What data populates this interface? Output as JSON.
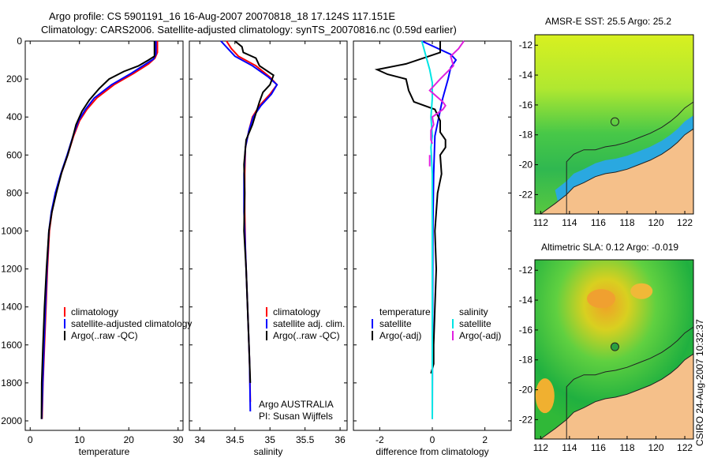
{
  "header": {
    "line1": "Argo profile: CS 5901191_16 16-Aug-2007 20070818_18 17.124S 117.151E",
    "line2": "Climatology: CARS2006. Satellite-adjusted climatology: synTS_20070816.nc (0.59d earlier)"
  },
  "credit": "CSIRO 24-Aug-2007 10:32:37",
  "colors": {
    "climatology": "#ff0000",
    "satellite": "#0000ff",
    "argo": "#000000",
    "salinity_sat": "#00e5e5",
    "salinity_argo": "#e020e0",
    "land": "#f5c08a"
  },
  "chart_data": [
    {
      "type": "line",
      "xlabel": "temperature",
      "xlim": [
        -1,
        31
      ],
      "xticks": [
        0,
        10,
        20,
        30
      ],
      "ylim": [
        2050,
        0
      ],
      "yticks": [
        0,
        200,
        400,
        600,
        800,
        1000,
        1200,
        1400,
        1600,
        1800,
        2000
      ],
      "legend": [
        "climatology",
        "satellite-adjusted climatology",
        "Argo(..raw -QC)"
      ],
      "series": [
        {
          "name": "climatology",
          "color": "red",
          "points": [
            [
              25.8,
              0
            ],
            [
              25.8,
              60
            ],
            [
              25.3,
              90
            ],
            [
              24,
              120
            ],
            [
              21,
              170
            ],
            [
              17,
              230
            ],
            [
              13.5,
              300
            ],
            [
              11.5,
              360
            ],
            [
              10,
              420
            ],
            [
              8.8,
              500
            ],
            [
              7.6,
              600
            ],
            [
              6.3,
              700
            ],
            [
              5.2,
              800
            ],
            [
              4.4,
              900
            ],
            [
              3.9,
              1000
            ],
            [
              3.5,
              1200
            ],
            [
              3.2,
              1400
            ],
            [
              2.9,
              1600
            ],
            [
              2.6,
              1800
            ],
            [
              2.4,
              1990
            ]
          ]
        },
        {
          "name": "satellite-adjusted climatology",
          "color": "blue",
          "points": [
            [
              25.5,
              0
            ],
            [
              25.5,
              70
            ],
            [
              25,
              95
            ],
            [
              23.5,
              120
            ],
            [
              20.5,
              170
            ],
            [
              16.5,
              230
            ],
            [
              13,
              300
            ],
            [
              11.2,
              360
            ],
            [
              9.8,
              420
            ],
            [
              8.7,
              500
            ],
            [
              7.5,
              600
            ],
            [
              6.2,
              700
            ],
            [
              5.1,
              800
            ],
            [
              4.3,
              900
            ],
            [
              3.8,
              1000
            ],
            [
              3.4,
              1200
            ],
            [
              3.1,
              1400
            ],
            [
              2.8,
              1600
            ],
            [
              2.55,
              1800
            ],
            [
              2.35,
              1990
            ]
          ]
        },
        {
          "name": "Argo(..raw -QC)",
          "color": "black",
          "points": [
            [
              25.2,
              0
            ],
            [
              25.2,
              80
            ],
            [
              24,
              100
            ],
            [
              22,
              130
            ],
            [
              19,
              160
            ],
            [
              16,
              200
            ],
            [
              14,
              250
            ],
            [
              12,
              310
            ],
            [
              10.5,
              370
            ],
            [
              9.3,
              440
            ],
            [
              8.5,
              520
            ],
            [
              7.6,
              600
            ],
            [
              6.4,
              690
            ],
            [
              5.3,
              800
            ],
            [
              4.4,
              900
            ],
            [
              3.8,
              1000
            ],
            [
              3.3,
              1200
            ],
            [
              2.9,
              1400
            ],
            [
              2.6,
              1600
            ],
            [
              2.35,
              1800
            ],
            [
              2.3,
              1990
            ]
          ]
        }
      ]
    },
    {
      "type": "line",
      "xlabel": "salinity",
      "xlim": [
        33.85,
        36.1
      ],
      "xticks": [
        34,
        34.5,
        35,
        35.5,
        36
      ],
      "ylim": [
        2050,
        0
      ],
      "yticks": [
        0,
        200,
        400,
        600,
        800,
        1000,
        1200,
        1400,
        1600,
        1800,
        2000
      ],
      "legend": [
        "climatology",
        "satellite adj. clim.",
        "Argo(..raw -QC)"
      ],
      "annotation": [
        "Argo AUSTRALIA",
        "PI: Susan Wijffels"
      ],
      "series": [
        {
          "name": "climatology",
          "color": "red",
          "points": [
            [
              34.38,
              0
            ],
            [
              34.45,
              40
            ],
            [
              34.55,
              80
            ],
            [
              34.8,
              130
            ],
            [
              35,
              190
            ],
            [
              35.1,
              230
            ],
            [
              35.0,
              280
            ],
            [
              34.85,
              340
            ],
            [
              34.75,
              400
            ],
            [
              34.7,
              470
            ],
            [
              34.65,
              560
            ],
            [
              34.64,
              700
            ],
            [
              34.64,
              900
            ],
            [
              34.65,
              1100
            ],
            [
              34.67,
              1300
            ],
            [
              34.69,
              1500
            ],
            [
              34.71,
              1700
            ],
            [
              34.72,
              1900
            ]
          ]
        },
        {
          "name": "satellite adj. clim.",
          "color": "blue",
          "points": [
            [
              34.3,
              0
            ],
            [
              34.4,
              40
            ],
            [
              34.5,
              80
            ],
            [
              34.75,
              130
            ],
            [
              34.98,
              190
            ],
            [
              35.1,
              230
            ],
            [
              35.02,
              280
            ],
            [
              34.87,
              340
            ],
            [
              34.76,
              400
            ],
            [
              34.7,
              470
            ],
            [
              34.65,
              560
            ],
            [
              34.63,
              700
            ],
            [
              34.63,
              900
            ],
            [
              34.65,
              1100
            ],
            [
              34.67,
              1300
            ],
            [
              34.69,
              1500
            ],
            [
              34.71,
              1700
            ],
            [
              34.72,
              1950
            ]
          ]
        },
        {
          "name": "Argo(..raw -QC)",
          "color": "black",
          "points": [
            [
              34.5,
              0
            ],
            [
              34.6,
              30
            ],
            [
              34.62,
              60
            ],
            [
              34.8,
              90
            ],
            [
              34.85,
              130
            ],
            [
              35.05,
              180
            ],
            [
              35,
              230
            ],
            [
              34.9,
              270
            ],
            [
              34.85,
              320
            ],
            [
              34.8,
              380
            ],
            [
              34.75,
              440
            ],
            [
              34.66,
              520
            ],
            [
              34.63,
              650
            ],
            [
              34.64,
              800
            ],
            [
              34.63,
              1000
            ],
            [
              34.66,
              1200
            ],
            [
              34.68,
              1400
            ],
            [
              34.7,
              1600
            ],
            [
              34.72,
              1800
            ]
          ]
        }
      ]
    },
    {
      "type": "line",
      "xlabel": "difference from climatology",
      "xlim": [
        -3,
        3
      ],
      "xticks": [
        -2,
        0,
        2
      ],
      "ylim": [
        2050,
        0
      ],
      "yticks": [
        0,
        200,
        400,
        600,
        800,
        1000,
        1200,
        1400,
        1600,
        1800,
        2000
      ],
      "legend_left": [
        "temperature",
        "satellite",
        "Argo(-adj)"
      ],
      "legend_right": [
        "salinity",
        "satellite",
        "Argo(-adj)"
      ],
      "series": [
        {
          "name": "temperature satellite",
          "color": "blue",
          "points": [
            [
              -0.4,
              0
            ],
            [
              0.7,
              70
            ],
            [
              0.9,
              100
            ],
            [
              0.7,
              140
            ],
            [
              0.6,
              200
            ],
            [
              0.4,
              300
            ],
            [
              0.25,
              400
            ],
            [
              0.1,
              500
            ],
            [
              0.05,
              700
            ],
            [
              0.02,
              1000
            ],
            [
              0.01,
              1500
            ],
            [
              0,
              1990
            ]
          ]
        },
        {
          "name": "temperature Argo(-adj)",
          "color": "black",
          "points": [
            [
              0.3,
              0
            ],
            [
              0.3,
              60
            ],
            [
              -1.0,
              120
            ],
            [
              -2.1,
              150
            ],
            [
              -1.7,
              175
            ],
            [
              -1.0,
              200
            ],
            [
              -0.9,
              260
            ],
            [
              -0.7,
              320
            ],
            [
              0.1,
              360
            ],
            [
              0.3,
              420
            ],
            [
              0.3,
              480
            ],
            [
              0.5,
              520
            ],
            [
              0.5,
              560
            ],
            [
              0.3,
              600
            ],
            [
              0.35,
              700
            ],
            [
              0.2,
              800
            ],
            [
              0.15,
              900
            ],
            [
              0.1,
              1000
            ],
            [
              0.15,
              1200
            ],
            [
              0.1,
              1400
            ],
            [
              0.05,
              1600
            ],
            [
              0.05,
              1700
            ],
            [
              -0.05,
              1750
            ]
          ]
        },
        {
          "name": "salinity satellite",
          "color": "cyan",
          "points": [
            [
              -0.4,
              0
            ],
            [
              -0.3,
              50
            ],
            [
              -0.2,
              100
            ],
            [
              -0.1,
              150
            ],
            [
              0.0,
              220
            ],
            [
              0.0,
              300
            ],
            [
              -0.05,
              400
            ],
            [
              0.0,
              500
            ],
            [
              -0.05,
              560
            ],
            [
              0,
              700
            ],
            [
              0,
              1000
            ],
            [
              0,
              1500
            ],
            [
              0,
              1990
            ]
          ]
        },
        {
          "name": "salinity Argo(-adj)",
          "color": "magenta",
          "points": [
            [
              1.2,
              0
            ],
            [
              1.0,
              40
            ],
            [
              0.7,
              80
            ],
            [
              0.8,
              130
            ],
            [
              0.3,
              200
            ],
            [
              -0.1,
              260
            ],
            [
              0.4,
              320
            ],
            [
              0.5,
              340
            ],
            [
              0.4,
              360
            ],
            [
              0.0,
              400
            ],
            [
              0.05,
              440
            ],
            [
              -0.05,
              470
            ],
            [
              -0.05,
              520
            ],
            [
              0.0,
              540
            ]
          ]
        },
        {
          "name": "salinity Argo(-adj) deep",
          "color": "magenta",
          "points": [
            [
              -0.1,
              600
            ],
            [
              -0.1,
              660
            ]
          ]
        }
      ]
    }
  ],
  "maps": [
    {
      "title": "AMSR-E SST: 25.5 Argo: 25.2",
      "xticks": [
        112,
        114,
        116,
        118,
        120,
        122
      ],
      "yticks": [
        -12,
        -14,
        -16,
        -18,
        -20,
        -22
      ],
      "marker": "circle"
    },
    {
      "title": "Altimetric SLA: 0.12 Argo: -0.019",
      "xticks": [
        112,
        114,
        116,
        118,
        120,
        122
      ],
      "yticks": [
        -12,
        -14,
        -16,
        -18,
        -20,
        -22
      ],
      "marker": "filled-circle"
    }
  ]
}
